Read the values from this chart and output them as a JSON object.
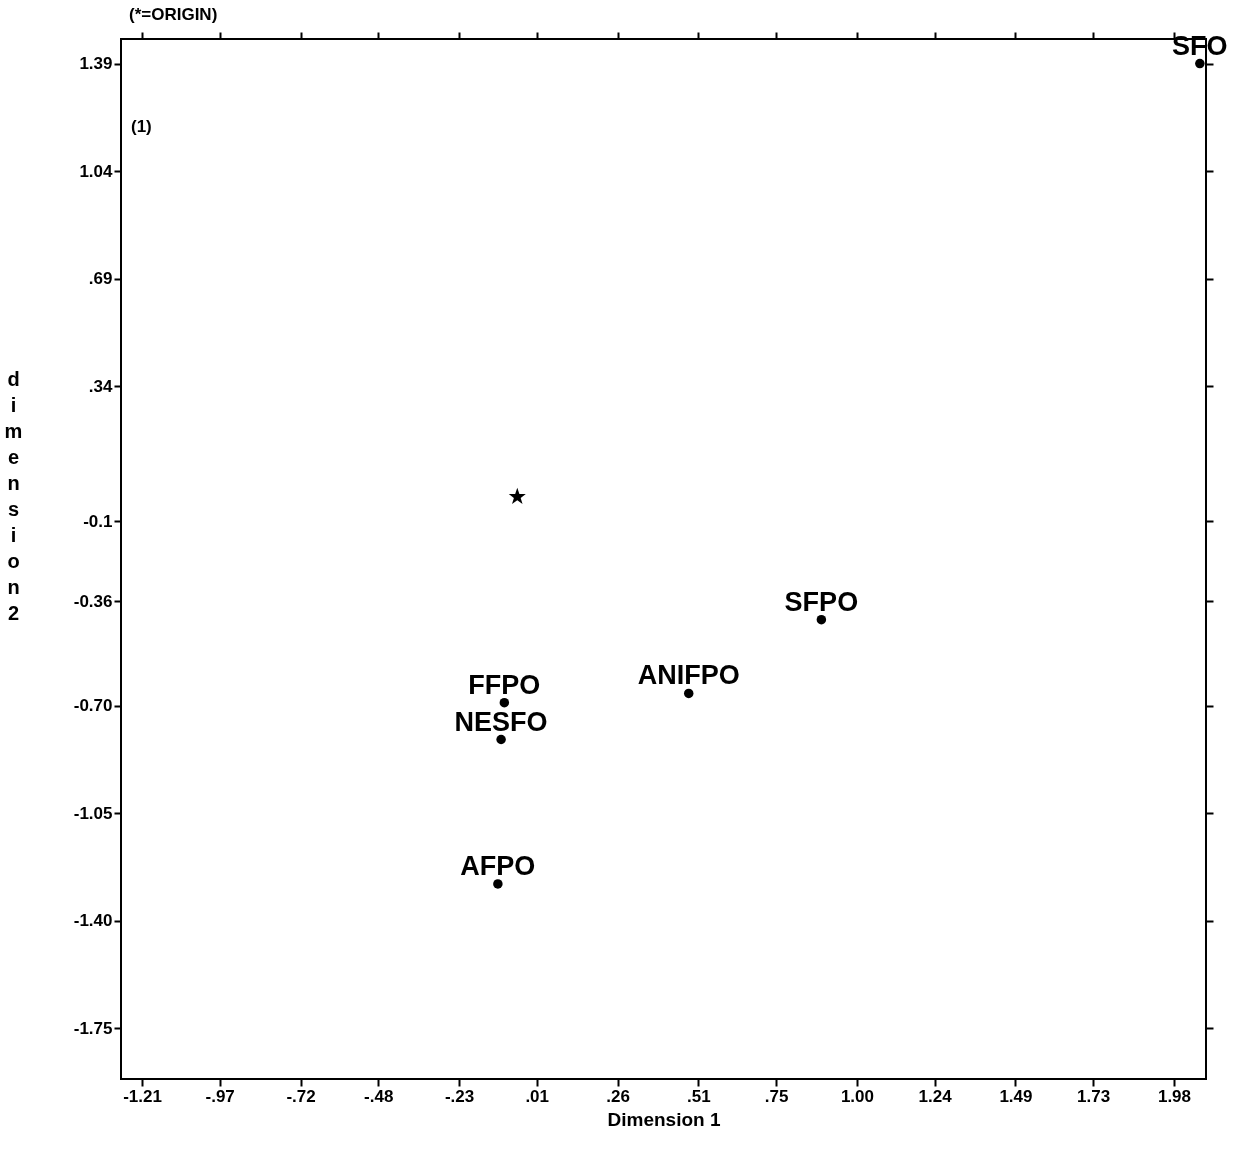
{
  "chart_data": {
    "type": "scatter",
    "xlabel": "Dimension 1",
    "ylabel": "dimension 2",
    "annotations": [
      "(*=ORIGIN)",
      "(1)"
    ],
    "xlim": [
      -1.275,
      2.079
    ],
    "ylim": [
      -1.915,
      1.47
    ],
    "xticks": [
      {
        "value": -1.21,
        "label": "-1.21"
      },
      {
        "value": -0.97,
        "label": "-.97"
      },
      {
        "value": -0.72,
        "label": "-.72"
      },
      {
        "value": -0.48,
        "label": "-.48"
      },
      {
        "value": -0.23,
        "label": "-.23"
      },
      {
        "value": 0.01,
        "label": ".01"
      },
      {
        "value": 0.26,
        "label": ".26"
      },
      {
        "value": 0.51,
        "label": ".51"
      },
      {
        "value": 0.75,
        "label": ".75"
      },
      {
        "value": 1.0,
        "label": "1.00"
      },
      {
        "value": 1.24,
        "label": "1.24"
      },
      {
        "value": 1.49,
        "label": "1.49"
      },
      {
        "value": 1.73,
        "label": "1.73"
      },
      {
        "value": 1.98,
        "label": "1.98"
      }
    ],
    "yticks": [
      1.39,
      1.04,
      {
        "value": 0.69,
        "label": ".69"
      },
      {
        "value": 0.34,
        "label": ".34"
      },
      -0.1,
      -0.36,
      {
        "value": -0.7,
        "label": "-0.70"
      },
      -1.05,
      {
        "value": -1.4,
        "label": "-1.40"
      },
      -1.75
    ],
    "grid": false,
    "marker": "circle",
    "series": [
      {
        "name": "SFO",
        "color": "#000000",
        "x": [
          2.06
        ],
        "values": [
          1.39
        ]
      },
      {
        "name": "SFPO",
        "color": "#000000",
        "x": [
          0.89
        ],
        "values": [
          -0.42
        ]
      },
      {
        "name": "ANIFPO",
        "color": "#000000",
        "x": [
          0.48
        ],
        "values": [
          -0.66
        ]
      },
      {
        "name": "FFPO",
        "color": "#000000",
        "x": [
          -0.09
        ],
        "values": [
          -0.69
        ]
      },
      {
        "name": "NESFO",
        "color": "#000000",
        "x": [
          -0.1
        ],
        "values": [
          -0.81
        ]
      },
      {
        "name": "AFPO",
        "color": "#000000",
        "x": [
          -0.11
        ],
        "values": [
          -1.28
        ]
      },
      {
        "color": "#000000",
        "x": [
          -0.05
        ],
        "values": [
          -0.02
        ],
        "marker": "star"
      }
    ]
  }
}
